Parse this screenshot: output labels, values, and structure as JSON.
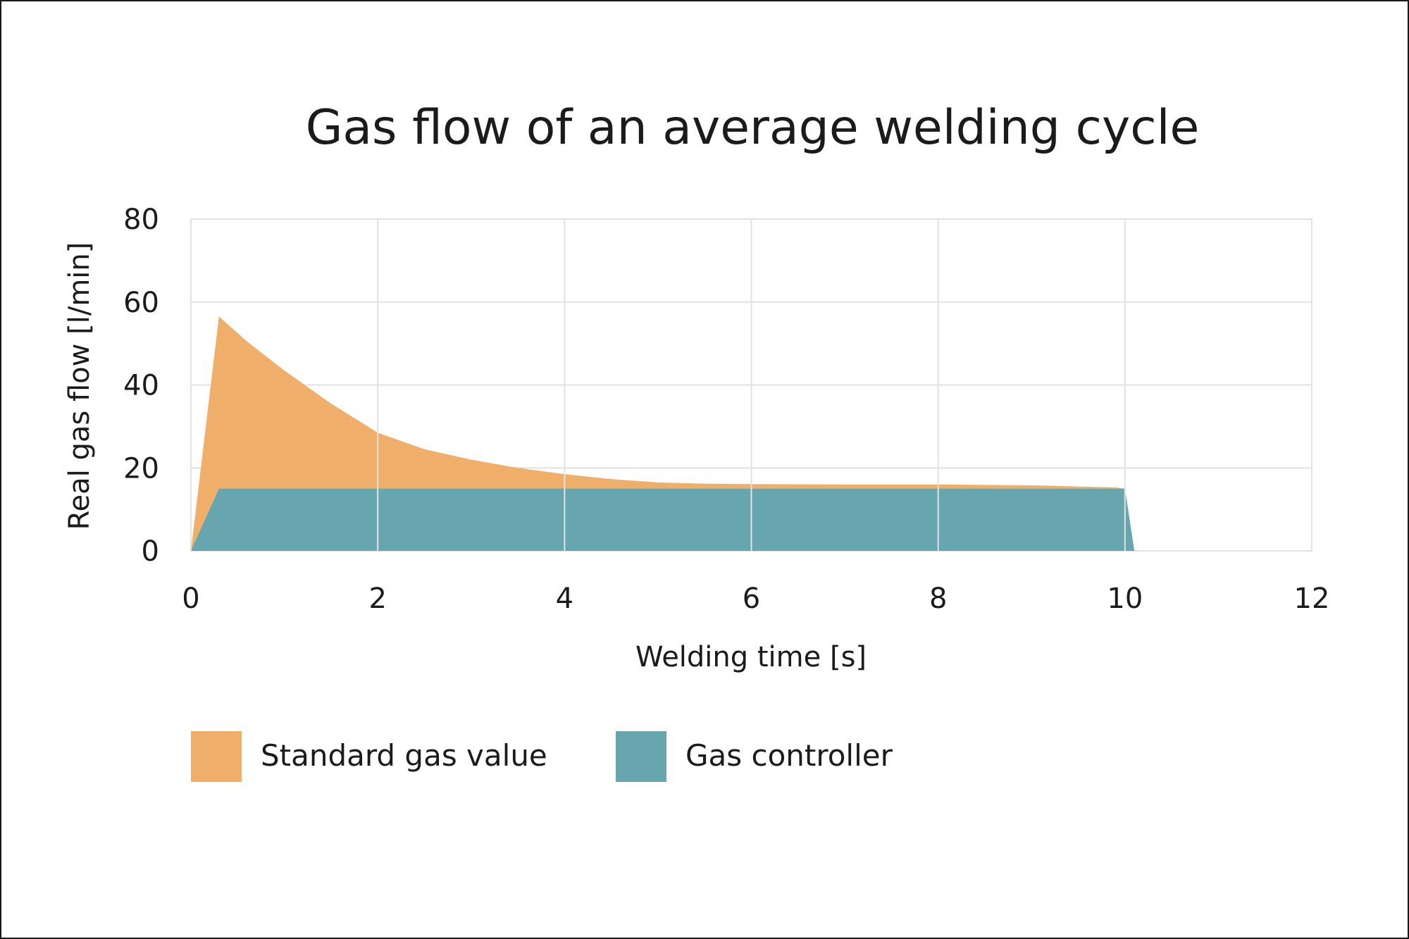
{
  "chart_data": {
    "type": "area",
    "title": "Gas flow of an average welding cycle",
    "xlabel": "Welding time [s]",
    "ylabel": "Real gas flow [l/min]",
    "xlim": [
      0,
      12
    ],
    "ylim": [
      0,
      80
    ],
    "x_ticks": [
      0,
      2,
      4,
      6,
      8,
      10,
      12
    ],
    "y_ticks": [
      0,
      20,
      40,
      60,
      80
    ],
    "x_tick_labels": [
      "0",
      "2",
      "4",
      "6",
      "8",
      "10",
      "12"
    ],
    "y_tick_labels": [
      "0",
      "20",
      "40",
      "60",
      "80"
    ],
    "grid": true,
    "legend_position": "bottom",
    "series": [
      {
        "name": "Standard gas value",
        "color": "#EFAF6A",
        "points": [
          [
            0,
            0
          ],
          [
            0.3,
            56.5
          ],
          [
            0.6,
            50.5
          ],
          [
            1.0,
            43.5
          ],
          [
            1.5,
            35.5
          ],
          [
            2.0,
            28.5
          ],
          [
            2.5,
            24.5
          ],
          [
            3.0,
            22
          ],
          [
            3.5,
            20
          ],
          [
            4.0,
            18.5
          ],
          [
            4.5,
            17.3
          ],
          [
            5.0,
            16.5
          ],
          [
            5.5,
            16.2
          ],
          [
            6.0,
            16.1
          ],
          [
            7.0,
            16
          ],
          [
            8.0,
            16
          ],
          [
            9.0,
            15.8
          ],
          [
            9.9,
            15.3
          ],
          [
            10.0,
            15
          ],
          [
            10.1,
            0
          ]
        ]
      },
      {
        "name": "Gas controller",
        "color": "#68A6AF",
        "points": [
          [
            0,
            0
          ],
          [
            0.3,
            15
          ],
          [
            10.0,
            15
          ],
          [
            10.1,
            0
          ]
        ]
      }
    ]
  }
}
